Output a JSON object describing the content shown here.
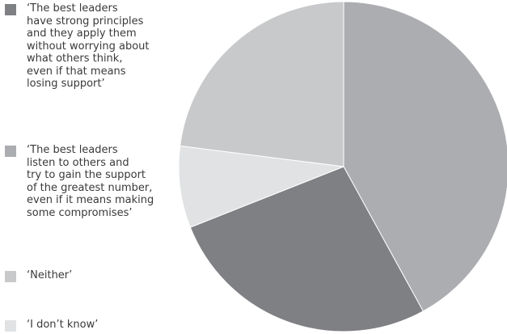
{
  "chart_data": {
    "type": "pie",
    "title": "",
    "legend_position": "left",
    "slices": [
      {
        "label": "‘The best leaders\nhave strong principles\nand they apply them\nwithout worrying about\nwhat others think,\neven if that means\nlosing support’",
        "value": 27,
        "color": "#7f8083"
      },
      {
        "label": "‘The best leaders\nlisten to others and\ntry to gain the support\nof the greatest number,\neven if it means making\nsome compromises’",
        "value": 42,
        "color": "#acadb0"
      },
      {
        "label": "‘Neither’",
        "value": 23,
        "color": "#c8c9cb"
      },
      {
        "label": "‘I don’t know’",
        "value": 8,
        "color": "#e1e2e3"
      }
    ]
  }
}
